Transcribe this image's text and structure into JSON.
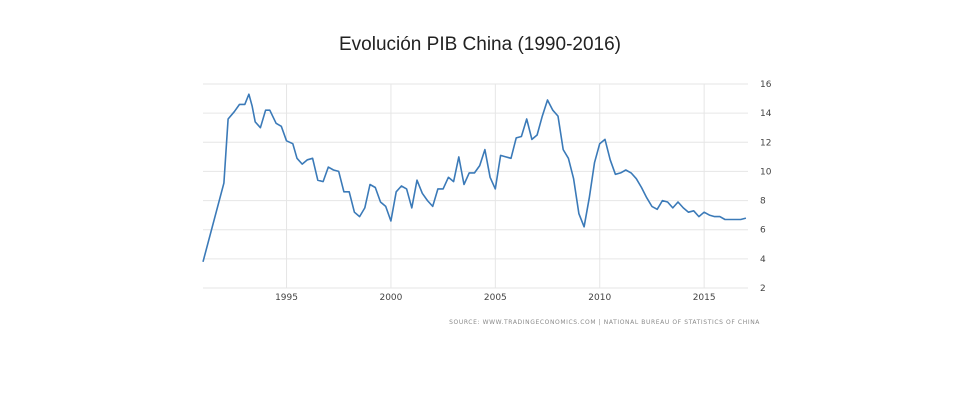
{
  "chart_data": {
    "type": "line",
    "title": "Evolución PIB China (1990-2016)",
    "source": "SOURCE: WWW.TRADINGECONOMICS.COM  |  NATIONAL BUREAU OF STATISTICS OF CHINA",
    "xlabel": "",
    "ylabel": "",
    "xlim": [
      1991.0,
      2017.1
    ],
    "ylim": [
      2,
      16
    ],
    "x_ticks": [
      1995,
      2000,
      2005,
      2010,
      2015
    ],
    "y_ticks": [
      2,
      4,
      6,
      8,
      10,
      12,
      14,
      16
    ],
    "grid": true,
    "y_axis_position": "right",
    "line_color": "#3b7ab8",
    "series": [
      {
        "x": [
          1991.0,
          1992.0,
          1992.2,
          1992.5,
          1992.75,
          1993.0,
          1993.2,
          1993.35,
          1993.5,
          1993.75,
          1994.0,
          1994.2,
          1994.5,
          1994.75,
          1995.0,
          1995.3,
          1995.5,
          1995.75,
          1996.0,
          1996.25,
          1996.5,
          1996.75,
          1997.0,
          1997.25,
          1997.5,
          1997.75,
          1998.0,
          1998.25,
          1998.5,
          1998.75,
          1999.0,
          1999.25,
          1999.5,
          1999.75,
          2000.0,
          2000.25,
          2000.5,
          2000.75,
          2001.0,
          2001.25,
          2001.5,
          2001.75,
          2002.0,
          2002.25,
          2002.5,
          2002.75,
          2003.0,
          2003.25,
          2003.5,
          2003.75,
          2004.0,
          2004.25,
          2004.5,
          2004.75,
          2005.0,
          2005.25,
          2005.5,
          2005.75,
          2006.0,
          2006.25,
          2006.5,
          2006.75,
          2007.0,
          2007.25,
          2007.5,
          2007.75,
          2008.0,
          2008.25,
          2008.5,
          2008.75,
          2009.0,
          2009.25,
          2009.5,
          2009.75,
          2010.0,
          2010.25,
          2010.5,
          2010.75,
          2011.0,
          2011.25,
          2011.5,
          2011.75,
          2012.0,
          2012.25,
          2012.5,
          2012.75,
          2013.0,
          2013.25,
          2013.5,
          2013.75,
          2014.0,
          2014.25,
          2014.5,
          2014.75,
          2015.0,
          2015.25,
          2015.5,
          2015.75,
          2016.0,
          2016.25,
          2016.5,
          2016.75,
          2017.0
        ],
        "values": [
          3.8,
          9.2,
          13.6,
          14.1,
          14.6,
          14.6,
          15.3,
          14.5,
          13.4,
          13.0,
          14.2,
          14.2,
          13.3,
          13.1,
          12.1,
          11.9,
          10.9,
          10.5,
          10.8,
          10.9,
          9.4,
          9.3,
          10.3,
          10.1,
          10.0,
          8.6,
          8.6,
          7.2,
          6.9,
          7.5,
          9.1,
          8.9,
          7.9,
          7.6,
          6.6,
          8.6,
          9.0,
          8.8,
          7.5,
          9.4,
          8.5,
          8.0,
          7.6,
          8.8,
          8.8,
          9.6,
          9.3,
          11.0,
          9.1,
          9.9,
          9.9,
          10.4,
          11.5,
          9.6,
          8.8,
          11.1,
          11.0,
          10.9,
          12.3,
          12.4,
          13.6,
          12.2,
          12.5,
          13.8,
          14.9,
          14.2,
          13.8,
          11.5,
          10.9,
          9.5,
          7.1,
          6.2,
          8.2,
          10.6,
          11.9,
          12.2,
          10.8,
          9.8,
          9.9,
          10.1,
          9.9,
          9.5,
          8.9,
          8.2,
          7.6,
          7.4,
          8.0,
          7.9,
          7.5,
          7.9,
          7.5,
          7.2,
          7.3,
          6.9,
          7.2,
          7.0,
          6.9,
          6.9,
          6.7,
          6.7,
          6.7,
          6.7,
          6.8
        ]
      }
    ]
  }
}
